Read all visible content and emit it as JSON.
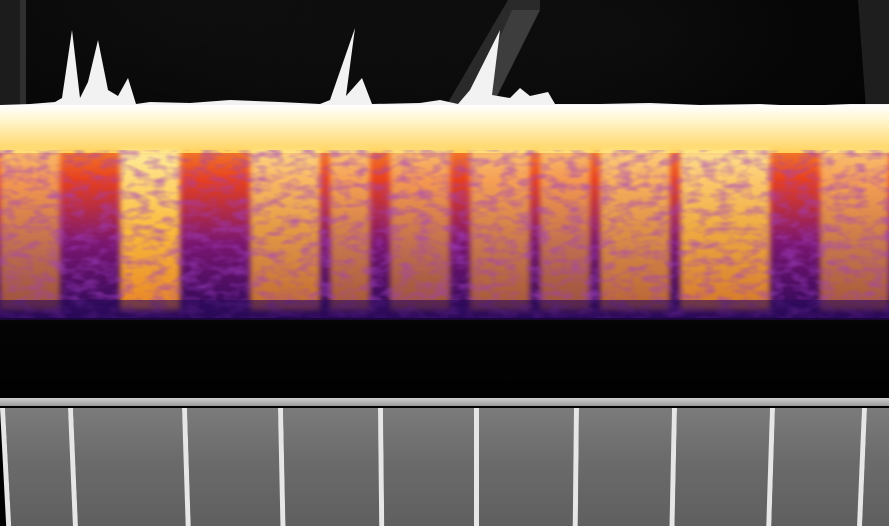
{
  "scene": {
    "view": "3d-spectrogram-visualizer",
    "colormap": "inferno",
    "background_color": "#000000",
    "spectrogram": {
      "peak_color": "#ffffff",
      "hot_color": "#ffd040",
      "mid_color": "#e8321c",
      "cool_color": "#4a0a7a",
      "cold_color": "#1a0840"
    },
    "piano": {
      "white_keys": 10,
      "key_color": "#6e6e6e",
      "key_edge_color": "#e6e6e6"
    }
  }
}
